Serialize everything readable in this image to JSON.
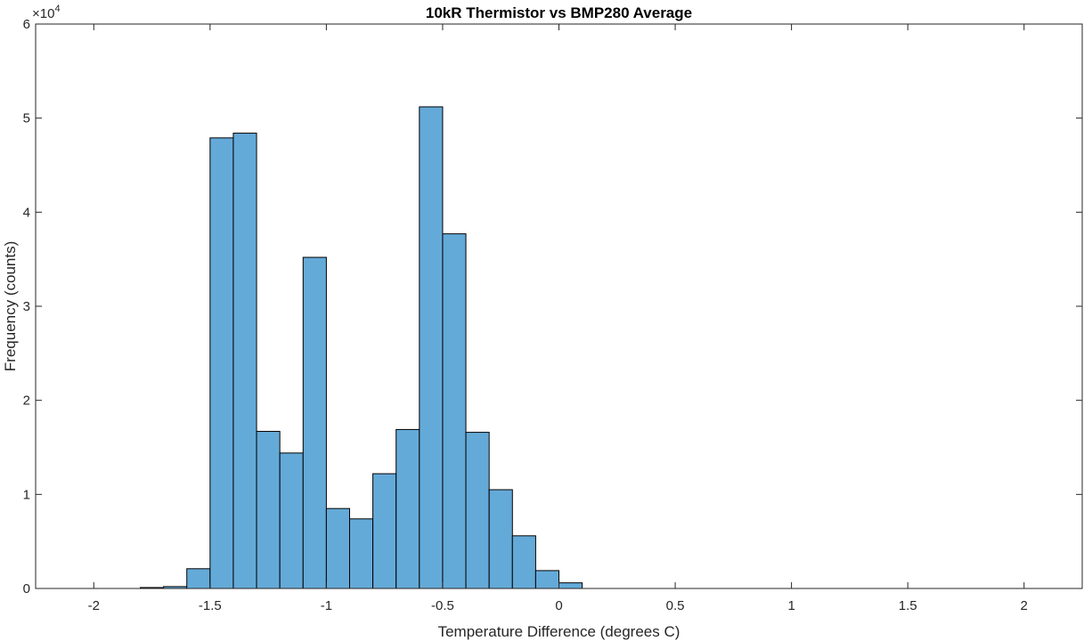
{
  "chart_data": {
    "type": "bar",
    "title": "10kR Thermistor vs BMP280 Average",
    "xlabel": "Temperature Difference (degrees C)",
    "ylabel": "Frequency (counts)",
    "xlim": [
      -2.25,
      2.25
    ],
    "ylim": [
      0,
      60000
    ],
    "y_exponent_label": "×10",
    "y_exponent_power": "4",
    "x_ticks": [
      -2,
      -1.5,
      -1,
      -0.5,
      0,
      0.5,
      1,
      1.5,
      2
    ],
    "x_tick_labels": [
      "-2",
      "-1.5",
      "-1",
      "-0.5",
      "0",
      "0.5",
      "1",
      "1.5",
      "2"
    ],
    "y_ticks": [
      0,
      10000,
      20000,
      30000,
      40000,
      50000,
      60000
    ],
    "y_tick_labels": [
      "0",
      "1",
      "2",
      "3",
      "4",
      "5",
      "6"
    ],
    "grid": false,
    "bar_color": "#64aad8",
    "edge_color": "#000000",
    "bin_edges": [
      -1.8,
      -1.7,
      -1.6,
      -1.5,
      -1.4,
      -1.3,
      -1.2,
      -1.1,
      -1.0,
      -0.9,
      -0.8,
      -0.7,
      -0.6,
      -0.5,
      -0.4,
      -0.3,
      -0.2,
      -0.1,
      0.0,
      0.1
    ],
    "values": [
      100,
      200,
      2100,
      47900,
      48400,
      16700,
      14400,
      35200,
      8500,
      7400,
      12200,
      16900,
      51200,
      37700,
      16600,
      10500,
      5600,
      1900,
      600
    ]
  }
}
